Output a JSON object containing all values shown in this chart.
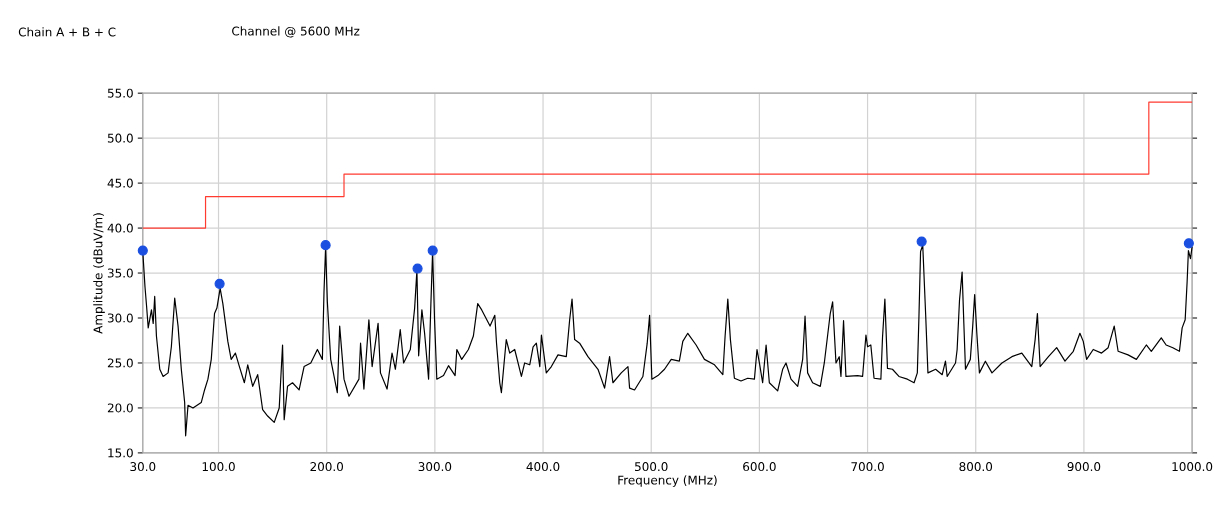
{
  "chart_data": {
    "type": "line",
    "title": "Chain  A + B + C",
    "subtitle": "Channel  @  5600 MHz",
    "xlabel": "Frequency (MHz)",
    "ylabel": "Amplitude (dBuV/m)",
    "xlim": [
      30,
      1000
    ],
    "ylim": [
      15,
      55
    ],
    "grid": true,
    "xticks": [
      {
        "value": 30,
        "label": "30.0"
      },
      {
        "value": 100,
        "label": "100.0"
      },
      {
        "value": 200,
        "label": "200.0"
      },
      {
        "value": 300,
        "label": "300.0"
      },
      {
        "value": 400,
        "label": "400.0"
      },
      {
        "value": 500,
        "label": "500.0"
      },
      {
        "value": 600,
        "label": "600.0"
      },
      {
        "value": 700,
        "label": "700.0"
      },
      {
        "value": 800,
        "label": "800.0"
      },
      {
        "value": 900,
        "label": "900.0"
      },
      {
        "value": 1000,
        "label": "1000.0"
      }
    ],
    "yticks": [
      {
        "value": 15,
        "label": "15.0"
      },
      {
        "value": 20,
        "label": "20.0"
      },
      {
        "value": 25,
        "label": "25.0"
      },
      {
        "value": 30,
        "label": "30.0"
      },
      {
        "value": 35,
        "label": "35.0"
      },
      {
        "value": 40,
        "label": "40.0"
      },
      {
        "value": 45,
        "label": "45.0"
      },
      {
        "value": 50,
        "label": "50.0"
      },
      {
        "value": 55,
        "label": "55.0"
      }
    ],
    "series": [
      {
        "color": "#000000",
        "x": [
          30,
          30.5,
          32,
          33.5,
          35,
          38,
          39.6,
          41,
          42.6,
          45.7,
          48.8,
          53.4,
          56.4,
          59.5,
          62.6,
          65.6,
          68.7,
          69.6,
          71.8,
          76.4,
          84,
          87.1,
          90.2,
          93.3,
          96.3,
          98.5,
          101.5,
          104,
          108.6,
          111.7,
          115.6,
          119.3,
          123.9,
          127,
          131.6,
          136.2,
          140.8,
          145.4,
          151.5,
          156.1,
          159.2,
          160.7,
          163.8,
          168.4,
          174.5,
          179.1,
          185.3,
          191.4,
          196,
          197.5,
          199,
          200.6,
          203.7,
          209.8,
          212,
          216,
          220.6,
          229.8,
          231.3,
          234.4,
          239,
          242,
          247.5,
          249.7,
          255.8,
          260.4,
          263.5,
          268,
          271.1,
          277.3,
          281.3,
          283.4,
          285,
          288,
          290.5,
          294.2,
          296.3,
          297.9,
          299.7,
          301.8,
          308,
          312.6,
          318.7,
          320.3,
          324.8,
          331,
          335.6,
          339.6,
          343.3,
          351,
          355.4,
          357,
          360,
          361.5,
          364,
          366,
          369.2,
          373.8,
          380,
          383,
          387.7,
          390.8,
          393.8,
          397,
          398.5,
          403,
          407.7,
          413.8,
          421.5,
          424.6,
          426.8,
          429.2,
          433.8,
          441.5,
          450.8,
          456.9,
          461.5,
          464.6,
          472.3,
          478.5,
          480,
          484.6,
          492.3,
          496.3,
          498.5,
          500.6,
          506.2,
          512.3,
          518.5,
          526,
          529.2,
          533.8,
          541.5,
          549.2,
          558.5,
          566.2,
          568.3,
          570.8,
          573.2,
          576.9,
          583,
          589.2,
          595.4,
          597.8,
          600,
          603,
          606.2,
          609.2,
          616.9,
          621.5,
          624.6,
          629.2,
          635.4,
          640,
          642.2,
          644.6,
          649.2,
          656.3,
          660,
          663,
          665.5,
          667.7,
          670.8,
          673.8,
          675.4,
          677.8,
          680,
          690.8,
          695.4,
          697,
          698.5,
          700,
          703,
          706,
          712.3,
          713.8,
          716,
          718.4,
          723,
          729,
          736.8,
          743,
          746,
          747.5,
          749,
          751,
          753.7,
          755.8,
          762.9,
          769,
          772,
          773.6,
          781.3,
          782.8,
          785,
          787.4,
          789,
          790.5,
          795,
          797.2,
          799,
          801,
          803.4,
          808.9,
          815,
          824.2,
          833.4,
          842.6,
          851.8,
          854.9,
          857,
          859.5,
          867.2,
          874.8,
          882.5,
          890.2,
          896.3,
          899.4,
          902.5,
          908.6,
          916.3,
          922.4,
          928,
          931.6,
          940.8,
          948.5,
          957.7,
          962.3,
          971.5,
          976,
          982.2,
          988.3,
          990.8,
          993.6,
          995.4,
          996.6,
          998.5,
          1000
        ],
        "values": [
          37.4,
          36.4,
          33.5,
          31.3,
          28.9,
          30.9,
          29.4,
          32.4,
          28,
          24.3,
          23.5,
          23.9,
          26.8,
          32.2,
          29.1,
          24.3,
          20.6,
          16.9,
          20.3,
          20,
          20.6,
          22,
          23.2,
          25.4,
          30.5,
          31.1,
          33.3,
          31.6,
          27.4,
          25.4,
          26.1,
          24.6,
          22.8,
          24.8,
          22.4,
          23.7,
          19.8,
          19.1,
          18.4,
          20,
          27,
          18.7,
          22.4,
          22.8,
          22,
          24.6,
          25,
          26.5,
          25.4,
          32.9,
          37.9,
          31.8,
          25.4,
          21.7,
          29.1,
          23.2,
          21.3,
          23.2,
          27.2,
          22.1,
          29.8,
          24.6,
          29.4,
          23.9,
          22.1,
          26.1,
          24.3,
          28.7,
          25,
          26.5,
          31.1,
          35.3,
          25.8,
          30.9,
          28.3,
          23.2,
          31.5,
          37.4,
          29.8,
          23.2,
          23.6,
          24.7,
          23.6,
          26.5,
          25.4,
          26.5,
          28,
          31.6,
          30.9,
          29.1,
          30.3,
          27.2,
          22.8,
          21.7,
          25,
          27.6,
          26.1,
          26.5,
          23.5,
          25,
          24.8,
          26.8,
          27.2,
          24.6,
          28.1,
          23.9,
          24.6,
          25.9,
          25.7,
          29.8,
          32.1,
          27.6,
          27.2,
          25.7,
          24.3,
          22.2,
          25.7,
          22.8,
          23.9,
          24.6,
          22.2,
          22,
          23.5,
          27.2,
          30.3,
          23.2,
          23.6,
          24.3,
          25.4,
          25.2,
          27.4,
          28.3,
          27,
          25.4,
          24.8,
          23.7,
          28,
          32.1,
          27.6,
          23.3,
          23,
          23.3,
          23.2,
          26.5,
          25,
          22.8,
          27,
          22.8,
          21.9,
          24.3,
          25,
          23.2,
          22.4,
          25.4,
          30.2,
          23.9,
          22.8,
          22.4,
          25,
          28,
          30.5,
          31.8,
          25,
          25.7,
          23.5,
          29.7,
          23.5,
          23.6,
          23.5,
          25.9,
          28.1,
          26.8,
          27,
          23.3,
          23.2,
          27.8,
          32.1,
          24.4,
          24.3,
          23.5,
          23.2,
          22.8,
          23.9,
          30.2,
          37.4,
          38.1,
          30.4,
          23.9,
          24.3,
          23.7,
          25.2,
          23.5,
          25,
          26.5,
          32,
          35.1,
          29.4,
          24.3,
          25.4,
          29.1,
          32.6,
          28.3,
          23.9,
          25.2,
          23.9,
          25,
          25.7,
          26.1,
          24.6,
          27.6,
          30.5,
          24.6,
          25.7,
          26.7,
          25.2,
          26.3,
          28.3,
          27.4,
          25.4,
          26.5,
          26.1,
          26.7,
          29.1,
          26.3,
          25.9,
          25.4,
          27,
          26.3,
          27.8,
          27,
          26.7,
          26.3,
          28.9,
          29.8,
          34,
          37.5,
          36.6,
          37.9
        ]
      },
      {
        "type": "step",
        "color": "#ff3b30",
        "x": [
          30,
          88,
          216,
          960,
          1000
        ],
        "values": [
          40,
          43.5,
          46,
          54,
          54
        ]
      },
      {
        "type": "scatter",
        "marker": "circle",
        "color": "#1a4fe0",
        "x": [
          30,
          101,
          199,
          284,
          298,
          750,
          997
        ],
        "values": [
          37.5,
          33.8,
          38.1,
          35.5,
          37.5,
          38.5,
          38.3
        ]
      }
    ]
  }
}
